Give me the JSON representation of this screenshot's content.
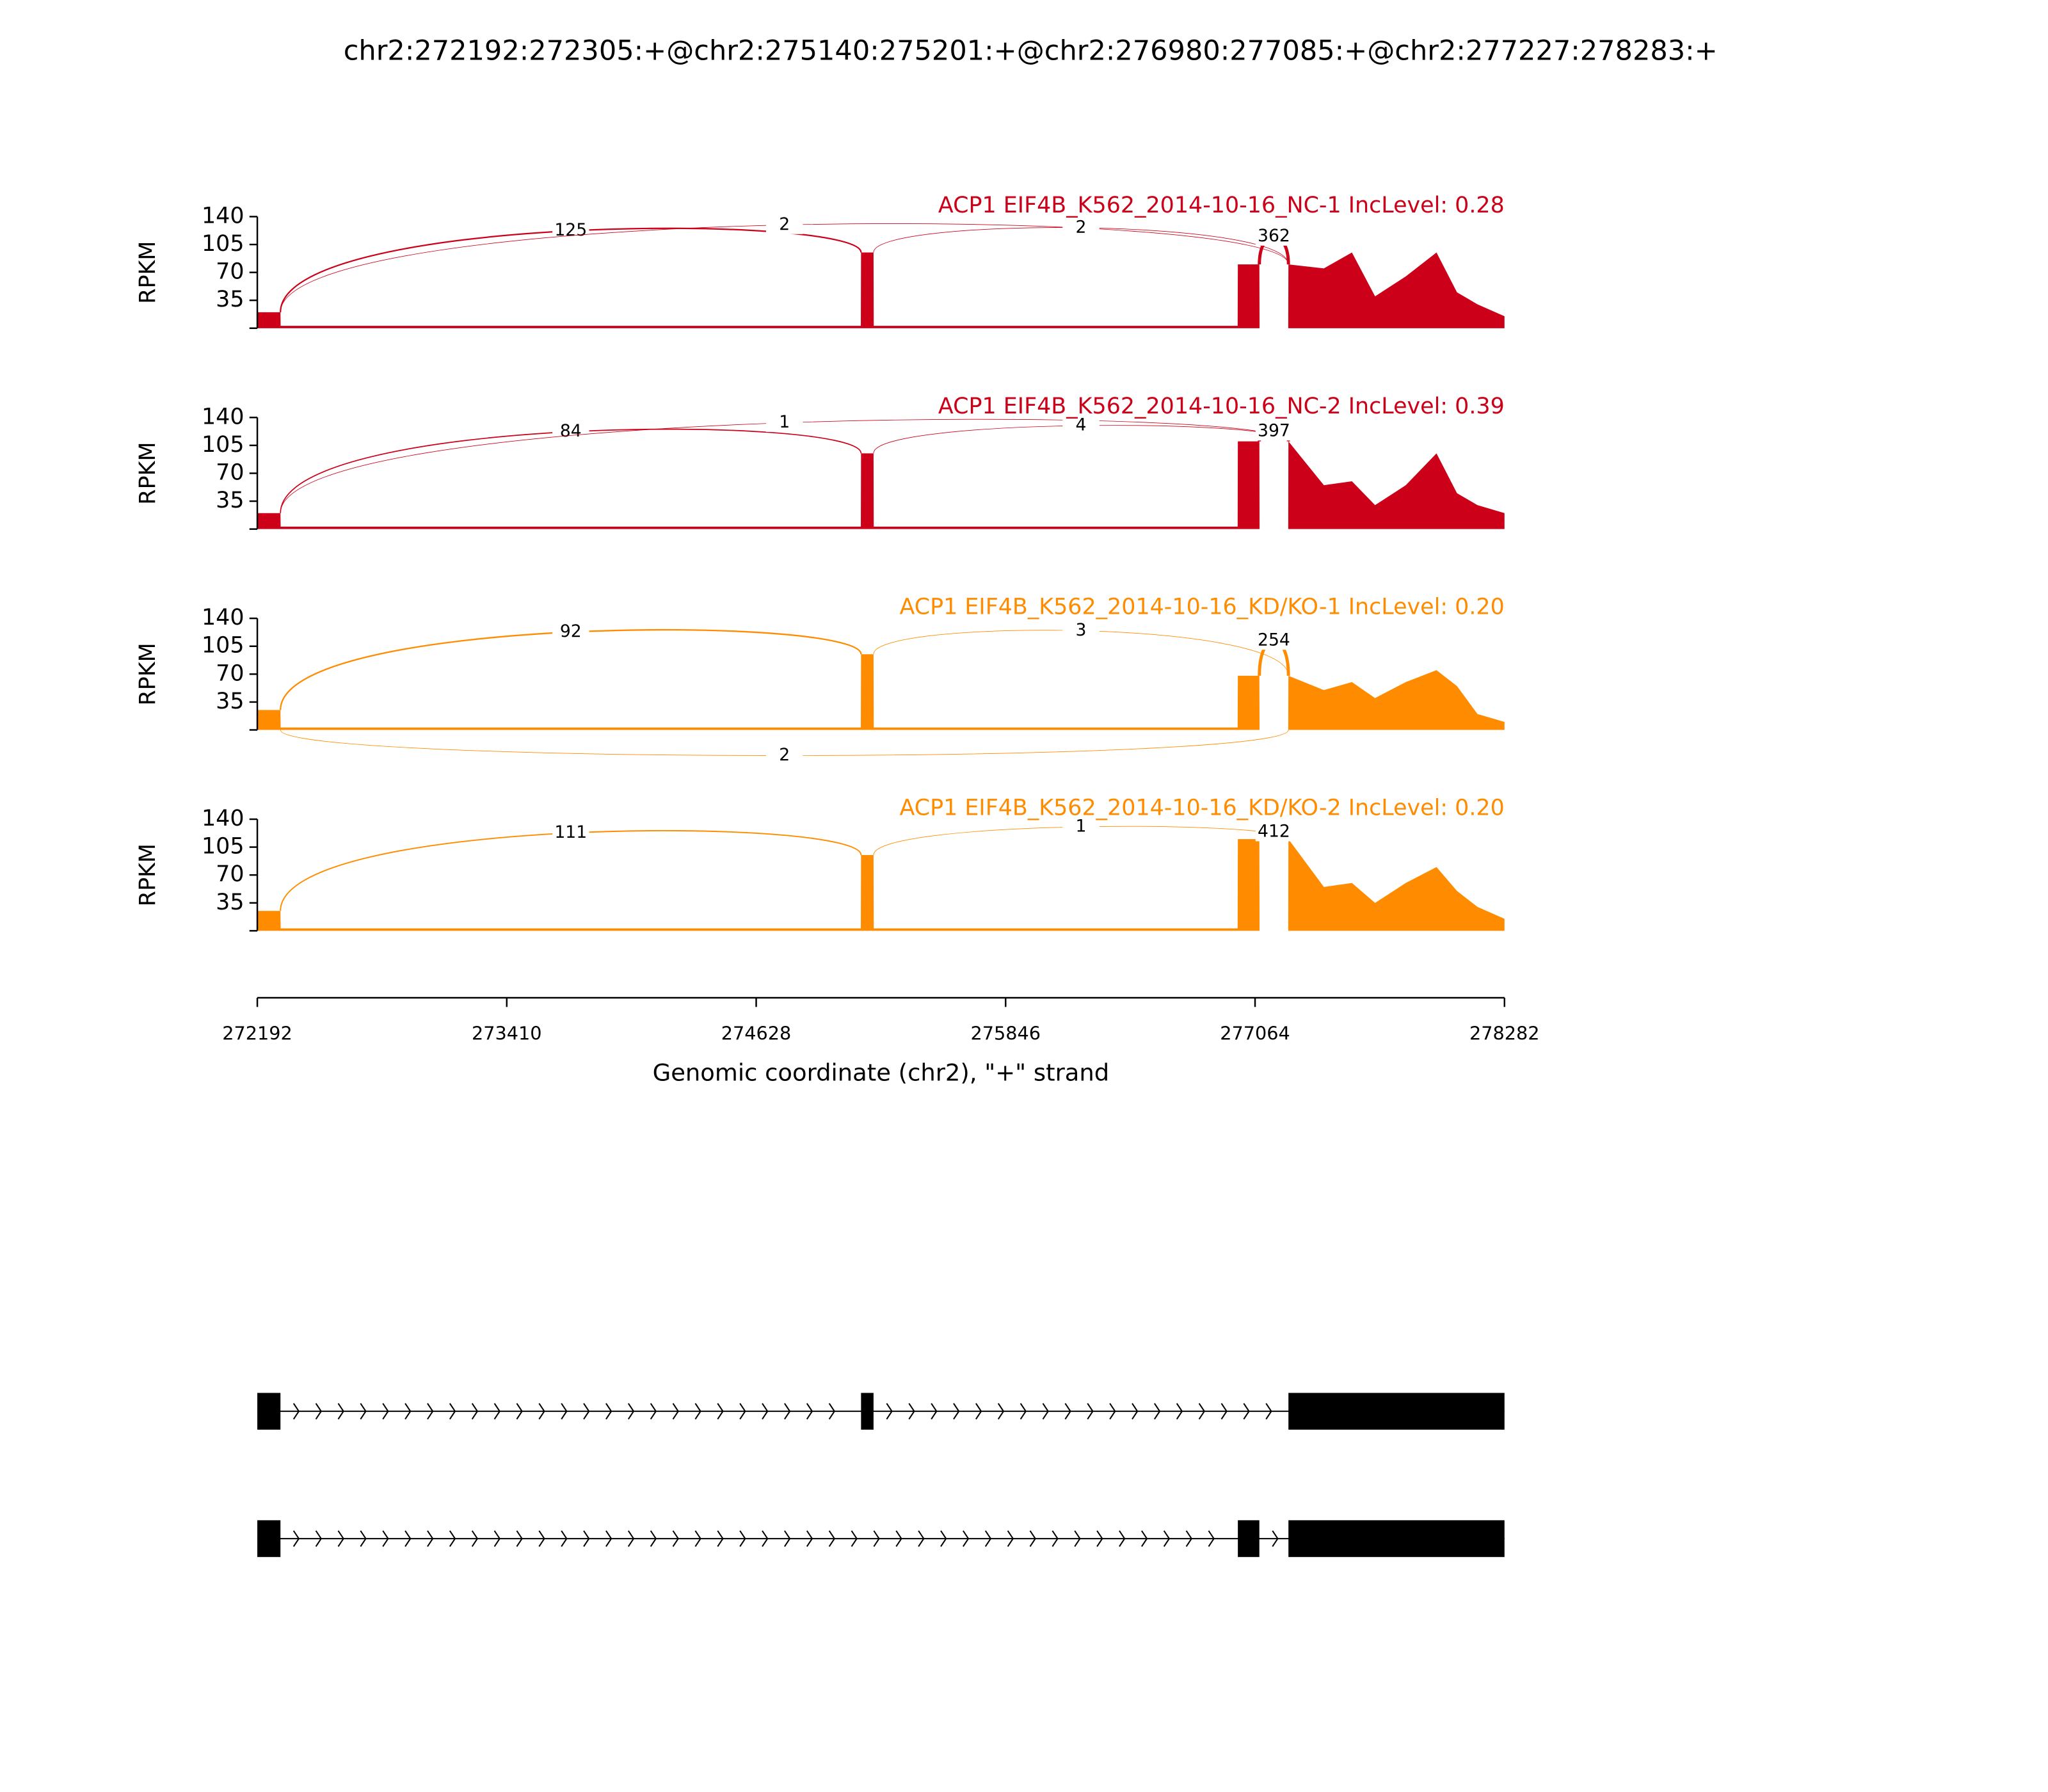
{
  "chart_data": {
    "type": "sashimi",
    "title": "chr2:272192:272305:+@chr2:275140:275201:+@chr2:276980:277085:+@chr2:277227:278283:+",
    "xlabel": "Genomic coordinate (chr2), \"+\" strand",
    "xlim": [
      272192,
      278282
    ],
    "xticks": [
      272192,
      273410,
      274628,
      275846,
      277064,
      278282
    ],
    "panels": [
      {
        "title": "ACP1 EIF4B_K562_2014-10-16_NC-1 IncLevel: 0.28",
        "color": "#cc0018",
        "ylabel": "RPKM",
        "ylim": [
          0,
          140
        ],
        "yticks": [
          35,
          70,
          105,
          140
        ],
        "coverage": {
          "x": [
            272192,
            272305,
            272306,
            275139,
            275140,
            275201,
            275202,
            276979,
            276980,
            277085,
            277086,
            277226,
            277227,
            277400,
            277537,
            277650,
            277800,
            277950,
            278050,
            278150,
            278282
          ],
          "values": [
            20,
            20,
            3,
            3,
            95,
            95,
            3,
            3,
            80,
            80,
            0,
            0,
            80,
            75,
            95,
            40,
            65,
            95,
            45,
            30,
            15
          ]
        },
        "junctions": [
          {
            "start": 272305,
            "end": 275140,
            "count": 125,
            "side": "above"
          },
          {
            "start": 272305,
            "end": 277227,
            "count": 2,
            "side": "above"
          },
          {
            "start": 275201,
            "end": 277227,
            "count": 2,
            "side": "above"
          },
          {
            "start": 277085,
            "end": 277227,
            "count": 362,
            "side": "above"
          }
        ]
      },
      {
        "title": "ACP1 EIF4B_K562_2014-10-16_NC-2 IncLevel: 0.39",
        "color": "#cc0018",
        "ylabel": "RPKM",
        "ylim": [
          0,
          140
        ],
        "yticks": [
          35,
          70,
          105,
          140
        ],
        "coverage": {
          "x": [
            272192,
            272305,
            272306,
            275139,
            275140,
            275201,
            275202,
            276979,
            276980,
            277085,
            277086,
            277226,
            277227,
            277400,
            277537,
            277650,
            277800,
            277950,
            278050,
            278150,
            278282
          ],
          "values": [
            20,
            20,
            3,
            3,
            95,
            95,
            3,
            3,
            110,
            110,
            0,
            0,
            110,
            55,
            60,
            30,
            55,
            95,
            45,
            30,
            20
          ]
        },
        "junctions": [
          {
            "start": 272305,
            "end": 275140,
            "count": 84,
            "side": "above"
          },
          {
            "start": 272305,
            "end": 277227,
            "count": 1,
            "side": "above"
          },
          {
            "start": 275201,
            "end": 277227,
            "count": 4,
            "side": "above"
          },
          {
            "start": 277085,
            "end": 277227,
            "count": 397,
            "side": "above"
          }
        ]
      },
      {
        "title": "ACP1 EIF4B_K562_2014-10-16_KD/KO-1 IncLevel: 0.20",
        "color": "#ff8c00",
        "ylabel": "RPKM",
        "ylim": [
          0,
          140
        ],
        "yticks": [
          35,
          70,
          105,
          140
        ],
        "coverage": {
          "x": [
            272192,
            272305,
            272306,
            275139,
            275140,
            275201,
            275202,
            276979,
            276980,
            277085,
            277086,
            277226,
            277227,
            277400,
            277537,
            277650,
            277800,
            277950,
            278050,
            278150,
            278282
          ],
          "values": [
            25,
            25,
            3,
            3,
            95,
            95,
            3,
            3,
            68,
            68,
            0,
            0,
            68,
            50,
            60,
            40,
            60,
            75,
            55,
            20,
            10
          ]
        },
        "junctions": [
          {
            "start": 272305,
            "end": 275140,
            "count": 92,
            "side": "above"
          },
          {
            "start": 275201,
            "end": 277227,
            "count": 3,
            "side": "above"
          },
          {
            "start": 277085,
            "end": 277227,
            "count": 254,
            "side": "above"
          },
          {
            "start": 272305,
            "end": 277227,
            "count": 2,
            "side": "below"
          }
        ]
      },
      {
        "title": "ACP1 EIF4B_K562_2014-10-16_KD/KO-2 IncLevel: 0.20",
        "color": "#ff8c00",
        "ylabel": "RPKM",
        "ylim": [
          0,
          140
        ],
        "yticks": [
          35,
          70,
          105,
          140
        ],
        "coverage": {
          "x": [
            272192,
            272305,
            272306,
            275139,
            275140,
            275201,
            275202,
            276979,
            276980,
            277085,
            277086,
            277226,
            277227,
            277400,
            277537,
            277650,
            277800,
            277950,
            278050,
            278150,
            278282
          ],
          "values": [
            25,
            25,
            3,
            3,
            95,
            95,
            3,
            3,
            115,
            115,
            0,
            0,
            115,
            55,
            60,
            35,
            60,
            80,
            50,
            30,
            15
          ]
        },
        "junctions": [
          {
            "start": 272305,
            "end": 275140,
            "count": 111,
            "side": "above"
          },
          {
            "start": 275201,
            "end": 277227,
            "count": 1,
            "side": "above"
          },
          {
            "start": 277085,
            "end": 277227,
            "count": 412,
            "side": "above"
          }
        ]
      }
    ],
    "transcripts": [
      {
        "exons": [
          [
            272192,
            272305
          ],
          [
            275140,
            275201
          ],
          [
            277227,
            278283
          ]
        ]
      },
      {
        "exons": [
          [
            272192,
            272305
          ],
          [
            276980,
            277085
          ],
          [
            277227,
            278283
          ]
        ]
      }
    ]
  }
}
